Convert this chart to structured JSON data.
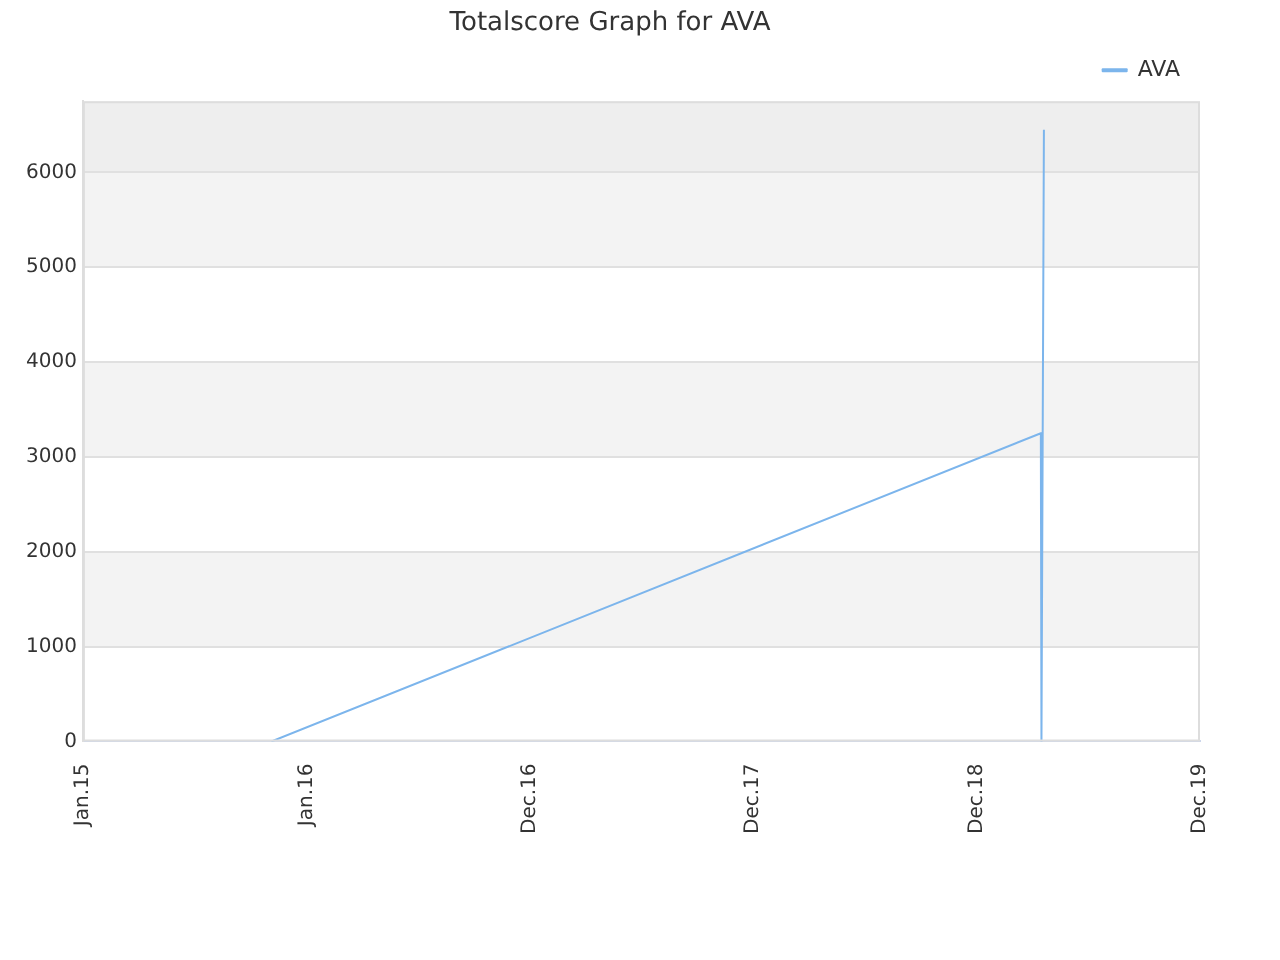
{
  "chart_data": {
    "type": "line",
    "title": "Totalscore Graph for AVA",
    "series": [
      {
        "name": "AVA",
        "color": "#7cb5ec",
        "x": [
          "2015-11-05",
          "2019-04-15",
          "2019-04-16",
          "2019-04-20"
        ],
        "values": [
          0,
          3250,
          0,
          6450
        ]
      }
    ],
    "xlim": [
      "2015-01-01",
      "2019-12-31"
    ],
    "xticks": [
      {
        "value": "2015-01-01",
        "label": "Jan.15"
      },
      {
        "value": "2016-01-01",
        "label": "Jan.16"
      },
      {
        "value": "2016-12-31",
        "label": "Dec.16"
      },
      {
        "value": "2017-12-31",
        "label": "Dec.17"
      },
      {
        "value": "2018-12-31",
        "label": "Dec.18"
      },
      {
        "value": "2019-12-31",
        "label": "Dec.19"
      }
    ],
    "ylim": [
      0,
      6750
    ],
    "yticks": [
      0,
      1000,
      2000,
      3000,
      4000,
      5000,
      6000
    ],
    "bands": [
      {
        "axis": "y",
        "from": 1000,
        "to": 2000,
        "color": "#f3f3f3"
      },
      {
        "axis": "y",
        "from": 3000,
        "to": 4000,
        "color": "#f3f3f3"
      },
      {
        "axis": "y",
        "from": 5000,
        "to": 6000,
        "color": "#f3f3f3"
      },
      {
        "axis": "y",
        "from": 6000,
        "to": 6750,
        "color": "#eeeeee"
      }
    ],
    "grid": "y",
    "legend": "top right",
    "marker": "none",
    "line_style": "solid"
  }
}
